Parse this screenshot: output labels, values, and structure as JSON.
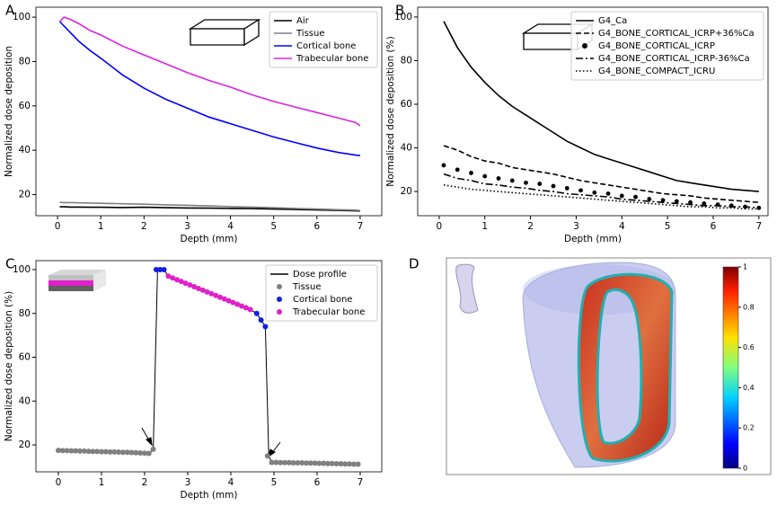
{
  "chart_data": [
    {
      "type": "line",
      "label": "A",
      "xlabel": "Depth (mm)",
      "ylabel": "Normalized dose deposition",
      "xlim": [
        -0.5,
        7.5
      ],
      "ylim": [
        10.5,
        104.5
      ],
      "xticks": [
        0,
        1,
        2,
        3,
        4,
        5,
        6,
        7
      ],
      "yticks": [
        20,
        40,
        60,
        80,
        100
      ],
      "legend": "upper right",
      "x": [
        0.05,
        0.15,
        0.3,
        0.5,
        0.75,
        1,
        1.5,
        2,
        2.5,
        3,
        3.5,
        4,
        4.5,
        5,
        5.5,
        6,
        6.5,
        6.9,
        7.0
      ],
      "series": [
        {
          "name": "Air",
          "color": "#000000",
          "style": "solid",
          "values": [
            14.5,
            14.5,
            14.4,
            14.4,
            14.3,
            14.3,
            14.2,
            14.3,
            14.1,
            14.0,
            13.9,
            13.8,
            13.7,
            13.5,
            13.3,
            13.1,
            12.9,
            12.7,
            12.6
          ]
        },
        {
          "name": "Tissue",
          "color": "#808080",
          "style": "solid",
          "values": [
            16.5,
            16.4,
            16.4,
            16.3,
            16.2,
            16.1,
            15.9,
            15.7,
            15.4,
            15.2,
            14.9,
            14.6,
            14.4,
            14.1,
            13.8,
            13.5,
            13.2,
            13.0,
            12.8
          ]
        },
        {
          "name": "Cortical bone",
          "color": "#0000ff",
          "style": "solid",
          "values": [
            98,
            96,
            93,
            89,
            85,
            81.5,
            74,
            68,
            63,
            59,
            55,
            52,
            49,
            46,
            43.5,
            41,
            39,
            37.8,
            37.6
          ]
        },
        {
          "name": "Trabecular bone",
          "color": "#dd22dd",
          "style": "solid",
          "values": [
            98,
            100,
            99,
            97,
            94,
            92,
            87,
            83,
            79,
            75,
            71.5,
            68.5,
            65,
            62,
            59.5,
            57,
            54.5,
            52.5,
            51
          ]
        }
      ]
    },
    {
      "type": "line",
      "label": "B",
      "xlabel": "Depth (mm)",
      "ylabel": "Normalized dose deposition (%)",
      "xlim": [
        -0.47,
        7.2
      ],
      "ylim": [
        8.9,
        104.5
      ],
      "xticks": [
        0,
        1,
        2,
        3,
        4,
        5,
        6,
        7
      ],
      "yticks": [
        20,
        40,
        60,
        80,
        100
      ],
      "legend": "upper right",
      "x": [
        0.1,
        0.4,
        0.7,
        1.0,
        1.3,
        1.6,
        1.9,
        2.2,
        2.5,
        2.8,
        3.1,
        3.4,
        3.7,
        4.0,
        4.3,
        4.6,
        4.9,
        5.2,
        5.5,
        5.8,
        6.1,
        6.4,
        6.7,
        7.0
      ],
      "series": [
        {
          "name": "G4_Ca",
          "color": "#000000",
          "style": "solid",
          "values": [
            98,
            86,
            77,
            70,
            64,
            59,
            55,
            51,
            47,
            43,
            40,
            37,
            35,
            33,
            31,
            29,
            27,
            25,
            24,
            23,
            22,
            21,
            20.5,
            20
          ]
        },
        {
          "name": "G4_BONE_CORTICAL_ICRP+36%Ca",
          "color": "#000000",
          "style": "dashed",
          "values": [
            41,
            39,
            36,
            34,
            33,
            31,
            30,
            29,
            28,
            26.5,
            25,
            24,
            23,
            22,
            21,
            20,
            19,
            18.5,
            18,
            17,
            16.5,
            16,
            15.5,
            15
          ]
        },
        {
          "name": "G4_BONE_CORTICAL_ICRP",
          "color": "#000000",
          "style": "markers",
          "values": [
            32,
            30,
            28.5,
            27,
            26,
            25,
            24,
            23.5,
            22.5,
            21.5,
            20.5,
            19.5,
            19,
            18,
            17.5,
            16.5,
            16,
            15.5,
            15,
            14.5,
            14,
            13.5,
            13,
            12.5
          ]
        },
        {
          "name": "G4_BONE_CORTICAL_ICRP-36%Ca",
          "color": "#000000",
          "style": "dashdot",
          "values": [
            28,
            26,
            25,
            23.5,
            23,
            22,
            21.5,
            20.5,
            20,
            19,
            18.5,
            18,
            17.5,
            16.5,
            16,
            15.5,
            15,
            14.5,
            14,
            13.5,
            13.5,
            13,
            13,
            12.5
          ]
        },
        {
          "name": "G4_BONE_COMPACT_ICRU",
          "color": "#000000",
          "style": "dotted",
          "values": [
            23,
            22,
            21,
            20.5,
            20,
            19.5,
            19,
            18.5,
            18,
            17.5,
            17,
            16.5,
            16,
            15.5,
            15,
            14.5,
            14,
            13.5,
            13,
            13,
            12.5,
            12.5,
            12,
            12
          ]
        }
      ]
    },
    {
      "type": "scatter",
      "label": "C",
      "xlabel": "Depth (mm)",
      "ylabel": "Normalized dose deposition (%)",
      "xlim": [
        -0.52,
        7.5
      ],
      "ylim": [
        7.7,
        104.1
      ],
      "xticks": [
        0,
        1,
        2,
        3,
        4,
        5,
        6,
        7
      ],
      "yticks": [
        20,
        40,
        60,
        80,
        100
      ],
      "legend": "upper right",
      "series": [
        {
          "name": "Dose profile",
          "color": "#000000",
          "style": "solid",
          "x": [
            0,
            2.1,
            2.2,
            2.3,
            2.45,
            2.55,
            4.45,
            4.6,
            4.8,
            4.88,
            4.95,
            6.95
          ],
          "values": [
            17.5,
            16.1,
            18,
            100,
            100,
            97,
            81.8,
            80,
            74,
            15,
            12,
            11.2
          ]
        },
        {
          "name": "Tissue",
          "color": "#808080",
          "style": "markers",
          "x": [
            0,
            0.1,
            0.2,
            0.3,
            0.4,
            0.5,
            0.6,
            0.7,
            0.8,
            0.9,
            1.0,
            1.1,
            1.2,
            1.3,
            1.4,
            1.5,
            1.6,
            1.7,
            1.8,
            1.9,
            2.0,
            2.1,
            2.2,
            4.85,
            4.95,
            5.05,
            5.15,
            5.25,
            5.35,
            5.45,
            5.55,
            5.65,
            5.75,
            5.85,
            5.95,
            6.05,
            6.15,
            6.25,
            6.35,
            6.45,
            6.55,
            6.65,
            6.75,
            6.85,
            6.95
          ],
          "values": [
            17.5,
            17.4,
            17.4,
            17.3,
            17.3,
            17.2,
            17.2,
            17.1,
            17.0,
            17.0,
            16.9,
            16.9,
            16.8,
            16.8,
            16.7,
            16.6,
            16.6,
            16.5,
            16.4,
            16.3,
            16.2,
            16.1,
            18,
            15,
            12.0,
            12.0,
            11.9,
            11.9,
            11.9,
            11.8,
            11.8,
            11.8,
            11.7,
            11.7,
            11.7,
            11.6,
            11.6,
            11.5,
            11.5,
            11.4,
            11.4,
            11.3,
            11.3,
            11.2,
            11.2
          ]
        },
        {
          "name": "Cortical bone",
          "color": "#1020e0",
          "style": "markers",
          "x": [
            2.27,
            2.36,
            2.45,
            4.6,
            4.7,
            4.8
          ],
          "values": [
            100,
            100,
            100,
            80,
            77,
            74
          ]
        },
        {
          "name": "Trabecular bone",
          "color": "#e020c8",
          "style": "markers",
          "x": [
            2.55,
            2.65,
            2.75,
            2.85,
            2.95,
            3.05,
            3.15,
            3.25,
            3.35,
            3.45,
            3.55,
            3.65,
            3.75,
            3.85,
            3.95,
            4.05,
            4.15,
            4.25,
            4.35,
            4.45
          ],
          "values": [
            97,
            96.2,
            95.4,
            94.6,
            93.8,
            93,
            92.2,
            91.4,
            90.6,
            89.8,
            89,
            88.2,
            87.4,
            86.6,
            85.8,
            85,
            84.2,
            83.4,
            82.6,
            81.8
          ]
        }
      ]
    },
    {
      "type": "colorbar",
      "label": "D",
      "ylim": [
        0,
        1
      ],
      "yticks": [
        0,
        0.2,
        0.4,
        0.6,
        0.8,
        1
      ]
    }
  ]
}
